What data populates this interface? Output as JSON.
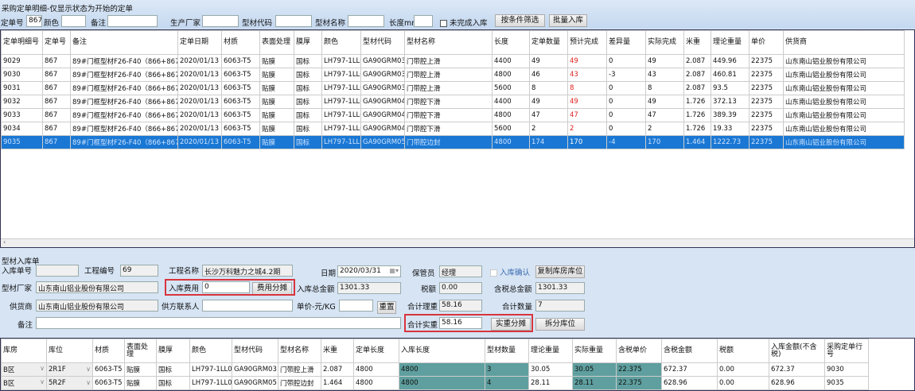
{
  "title": "采购定单明细-仅显示状态为开始的定单",
  "filters": {
    "order_no_label": "定单号",
    "order_no": "867",
    "color_label": "颜色",
    "color": "",
    "remark_label": "备注",
    "remark": "",
    "maker_label": "生产厂家",
    "maker": "",
    "code_label": "型材代码",
    "code": "",
    "name_label": "型材名称",
    "name": "",
    "length_label": "长度mm",
    "length": "",
    "incomplete_label": "未完成入库",
    "filter_btn": "按条件筛选",
    "batch_btn": "批量入库"
  },
  "top_grid": {
    "columns": [
      "定单明细号",
      "定单号",
      "备注",
      "定单日期",
      "材质",
      "表面处理",
      "膜厚",
      "颜色",
      "型材代码",
      "型材名称",
      "长度",
      "定单数量",
      "预计完成",
      "差异量",
      "实际完成",
      "米重",
      "理论重量",
      "单价",
      "供货商"
    ],
    "rows": [
      [
        "9029",
        "867",
        "89#门框型材F26-F40（866+867）",
        "2020/01/13",
        "6063-T5",
        "贴膜",
        "国标",
        "LH797-1LL0",
        "GA90GRM03",
        "门带腔上滑",
        "4400",
        "49",
        "49",
        "0",
        "49",
        "2.087",
        "449.96",
        "22375",
        "山东南山铝业股份有限公司"
      ],
      [
        "9030",
        "867",
        "89#门框型材F26-F40（866+867）",
        "2020/01/13",
        "6063-T5",
        "贴膜",
        "国标",
        "LH797-1LL0",
        "GA90GRM03",
        "门带腔上滑",
        "4800",
        "46",
        "43",
        "-3",
        "43",
        "2.087",
        "460.81",
        "22375",
        "山东南山铝业股份有限公司"
      ],
      [
        "9031",
        "867",
        "89#门框型材F26-F40（866+867）",
        "2020/01/13",
        "6063-T5",
        "贴膜",
        "国标",
        "LH797-1LL0",
        "GA90GRM03",
        "门带腔上滑",
        "5600",
        "8",
        "8",
        "0",
        "8",
        "2.087",
        "93.5",
        "22375",
        "山东南山铝业股份有限公司"
      ],
      [
        "9032",
        "867",
        "89#门框型材F26-F40（866+867）",
        "2020/01/13",
        "6063-T5",
        "贴膜",
        "国标",
        "LH797-1LL0",
        "GA90GRM04",
        "门带腔下滑",
        "4400",
        "49",
        "49",
        "0",
        "49",
        "1.726",
        "372.13",
        "22375",
        "山东南山铝业股份有限公司"
      ],
      [
        "9033",
        "867",
        "89#门框型材F26-F40（866+867）",
        "2020/01/13",
        "6063-T5",
        "贴膜",
        "国标",
        "LH797-1LL0",
        "GA90GRM04",
        "门带腔下滑",
        "4800",
        "47",
        "47",
        "0",
        "47",
        "1.726",
        "389.39",
        "22375",
        "山东南山铝业股份有限公司"
      ],
      [
        "9034",
        "867",
        "89#门框型材F26-F40（866+867）",
        "2020/01/13",
        "6063-T5",
        "贴膜",
        "国标",
        "LH797-1LL0",
        "GA90GRM04",
        "门带腔下滑",
        "5600",
        "2",
        "2",
        "0",
        "2",
        "1.726",
        "19.33",
        "22375",
        "山东南山铝业股份有限公司"
      ],
      [
        "9035",
        "867",
        "89#门框型材F26-F40（866+867）",
        "2020/01/13",
        "6063-T5",
        "贴膜",
        "国标",
        "LH797-1LL0",
        "GA90GRM05",
        "门带腔边封",
        "4800",
        "174",
        "170",
        "-4",
        "170",
        "1.464",
        "1222.73",
        "22375",
        "山东南山铝业股份有限公司"
      ]
    ],
    "selected_row": 6,
    "red_column": 12,
    "selection_color": "#1a78d4"
  },
  "form": {
    "section_title": "型材入库单",
    "receipt_no_label": "入库单号",
    "receipt_no": "",
    "project_no_label": "工程编号",
    "project_no": "69",
    "project_name_label": "工程名称",
    "project_name": "长沙万科魅力之城4.2期",
    "date_label": "日期",
    "date": "2020/03/31",
    "keeper_label": "保管员",
    "keeper": "经理",
    "confirm_label": "入库确认",
    "copy_btn": "复制库房库位",
    "maker_label": "型材厂家",
    "maker": "山东南山铝业股份有限公司",
    "fee_label": "入库费用",
    "fee": "0",
    "fee_btn": "费用分摊",
    "total_label": "入库总金额",
    "total": "1301.33",
    "tax_label": "税额",
    "tax": "0.00",
    "total_tax_label": "含税总金额",
    "total_tax": "1301.33",
    "supplier_label": "供货商",
    "supplier": "山东南山铝业股份有限公司",
    "contact_label": "供方联系人",
    "contact": "",
    "unit_price_label": "单价-元/KG",
    "unit_price": "",
    "reset_btn": "重置",
    "theory_weight_label": "合计理重",
    "theory_weight": "58.16",
    "qty_label": "合计数量",
    "qty": "7",
    "remark_label": "备注",
    "remark": "",
    "actual_weight_label": "合计实重",
    "actual_weight": "58.16",
    "actual_btn": "实重分摊",
    "split_btn": "拆分库位"
  },
  "bottom_grid": {
    "columns": [
      "库房",
      "库位",
      "材质",
      "表面处理",
      "膜厚",
      "颜色",
      "型材代码",
      "型材名称",
      "米重",
      "定单长度",
      "入库长度",
      "型材数量",
      "理论重量",
      "实际重量",
      "含税单价",
      "含税金额",
      "税额",
      "入库金额(不含税)",
      "采购定单行号"
    ],
    "rows": [
      [
        "B区",
        "2R1F",
        "6063-T5",
        "贴膜",
        "国标",
        "LH797-1LL0",
        "GA90GRM03",
        "门带腔上滑",
        "2.087",
        "4800",
        "4800",
        "3",
        "30.05",
        "30.05",
        "22.375",
        "672.37",
        "0.00",
        "672.37",
        "9030"
      ],
      [
        "B区",
        "5R2F",
        "6063-T5",
        "贴膜",
        "国标",
        "LH797-1LL0",
        "GA90GRM05",
        "门带腔边封",
        "1.464",
        "4800",
        "4800",
        "4",
        "28.11",
        "28.11",
        "22.375",
        "628.96",
        "0.00",
        "628.96",
        "9035"
      ]
    ],
    "teal_columns": [
      10,
      11,
      13,
      14
    ],
    "teal_color": "#5f9f9f"
  },
  "highlight_color": "#d8343c"
}
